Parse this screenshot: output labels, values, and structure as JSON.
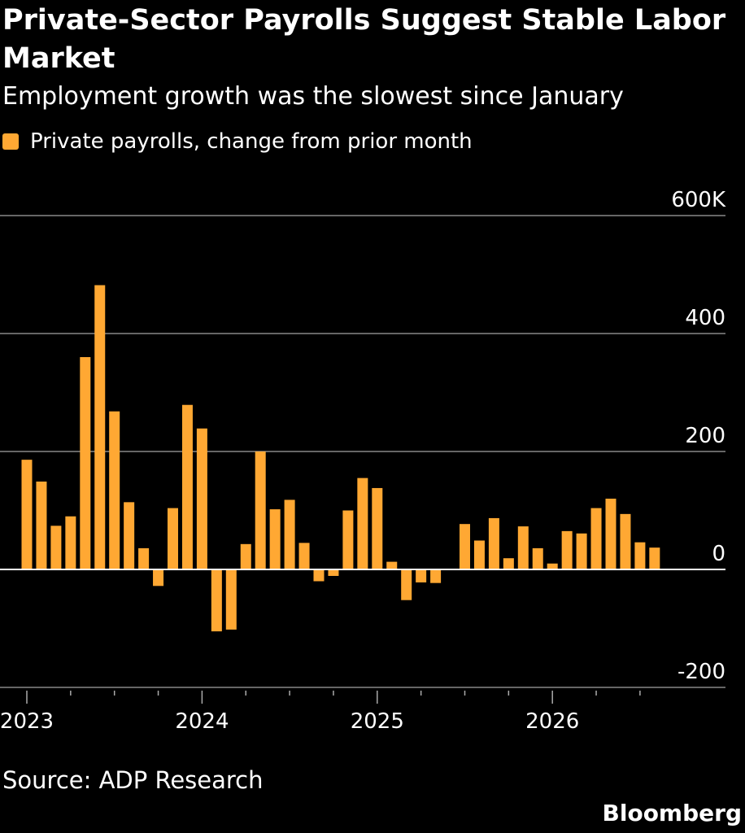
{
  "header": {
    "title": "Private-Sector Payrolls Suggest Stable Labor Market",
    "subtitle": "Employment growth was the slowest since January"
  },
  "colors": {
    "bar": "#FFA833",
    "background": "#000000",
    "grid": "#666666",
    "zero_line": "#FFFFFF"
  },
  "footer": {
    "source": "Source: ADP Research",
    "brand": "Bloomberg"
  },
  "chart_data": {
    "type": "bar",
    "legend": {
      "label": "Private payrolls, change from prior month",
      "placement": "top-left"
    },
    "y_axis": {
      "ylim": [
        -200,
        600
      ],
      "ticks": [
        {
          "value": 600,
          "label": "600K"
        },
        {
          "value": 400,
          "label": "400"
        },
        {
          "value": 200,
          "label": "200"
        },
        {
          "value": 0,
          "label": "0"
        },
        {
          "value": -200,
          "label": "-200"
        }
      ],
      "position": "right"
    },
    "x_axis": {
      "start": "2023-01",
      "major_ticks": [
        {
          "month_index": 0,
          "label": "2023"
        },
        {
          "month_index": 12,
          "label": "2024"
        },
        {
          "month_index": 24,
          "label": "2025"
        },
        {
          "month_index": 36,
          "label": "2026"
        }
      ],
      "minor_tick_every_months": 3
    },
    "grid": true,
    "series": [
      {
        "name": "Private payrolls, change from prior month",
        "x": [
          "2023-01",
          "2023-02",
          "2023-03",
          "2023-04",
          "2023-05",
          "2023-06",
          "2023-07",
          "2023-08",
          "2023-09",
          "2023-10",
          "2023-11",
          "2023-12",
          "2024-01",
          "2024-02",
          "2024-03",
          "2024-04",
          "2024-05",
          "2024-06",
          "2024-07",
          "2024-08",
          "2024-09",
          "2024-10",
          "2024-11",
          "2024-12",
          "2025-01",
          "2025-02",
          "2025-03",
          "2025-04",
          "2025-05",
          "2025-06",
          "2025-07",
          "2025-08",
          "2025-09",
          "2025-10",
          "2025-11",
          "2025-12",
          "2026-01",
          "2026-02",
          "2026-03",
          "2026-04",
          "2026-05",
          "2026-06",
          "2026-07",
          "2026-08"
        ],
        "values": [
          186,
          149,
          74,
          90,
          360,
          482,
          268,
          114,
          36,
          -28,
          104,
          279,
          239,
          -105,
          -102,
          43,
          200,
          102,
          118,
          45,
          -20,
          -11,
          100,
          155,
          138,
          13,
          -52,
          -22,
          -23,
          null,
          77,
          49,
          87,
          19,
          73,
          36,
          10,
          65,
          61,
          104,
          120,
          94,
          46,
          37
        ]
      }
    ]
  }
}
